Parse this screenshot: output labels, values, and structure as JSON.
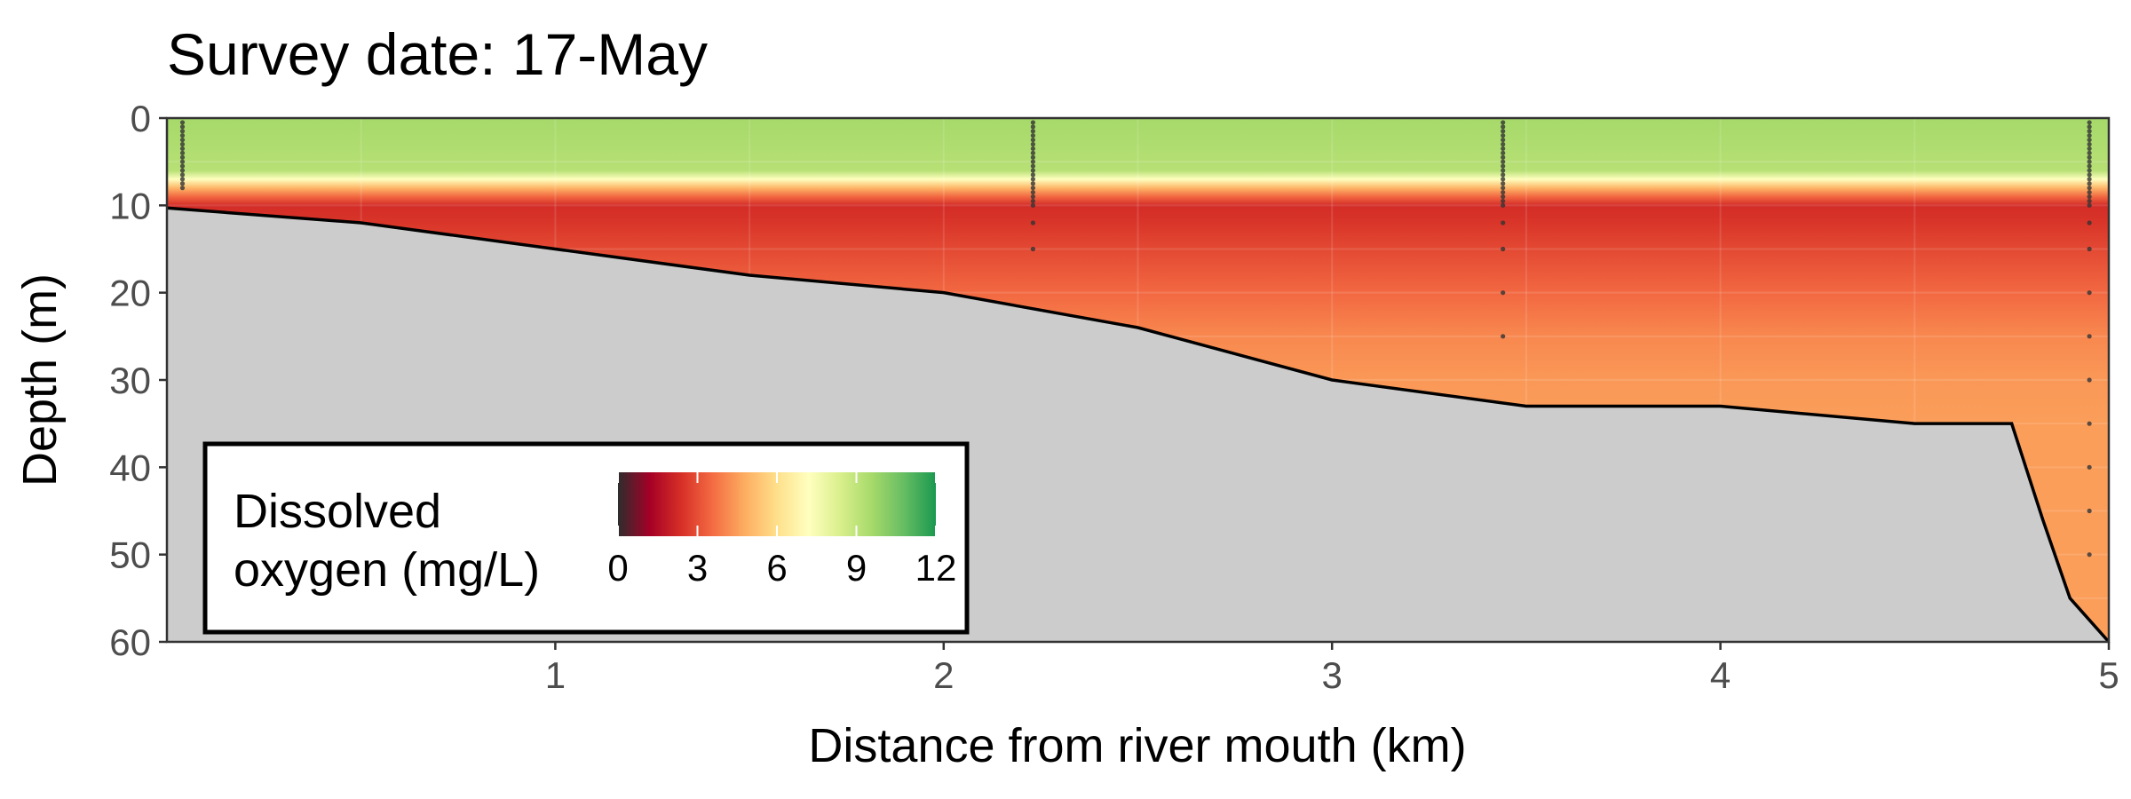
{
  "chart_data": {
    "type": "heatmap",
    "title": "Survey date: 17-May",
    "xlabel": "Distance from river mouth (km)",
    "ylabel": "Depth (m)",
    "xlim": [
      0,
      5
    ],
    "ylim": [
      0,
      60
    ],
    "y_reversed": true,
    "x_ticks": [
      1,
      2,
      3,
      4,
      5
    ],
    "x_tick_labels": [
      "1",
      "2",
      "3",
      "4",
      "5"
    ],
    "y_ticks": [
      0,
      10,
      20,
      30,
      40,
      50,
      60
    ],
    "y_tick_labels": [
      "0",
      "10",
      "20",
      "30",
      "40",
      "50",
      "60"
    ],
    "grid": true,
    "legend": {
      "title_line1": "Dissolved",
      "title_line2": "oxygen (mg/L)",
      "placement": "bottom-left",
      "range": [
        0,
        12
      ],
      "ticks": [
        0,
        3,
        6,
        9,
        12
      ],
      "tick_labels": [
        "0",
        "3",
        "6",
        "9",
        "12"
      ],
      "colormap": [
        "#2d2d2d",
        "#a50026",
        "#d73027",
        "#f46d43",
        "#fdae61",
        "#fee08b",
        "#ffffbf",
        "#d9ef8b",
        "#a6d96a",
        "#66bd63",
        "#1a9850"
      ]
    },
    "oxygen_profile": {
      "depth": [
        0,
        6,
        7,
        8,
        9,
        10,
        12,
        15,
        20,
        25,
        30,
        35,
        60
      ],
      "do_mgL": [
        9.6,
        9.2,
        7.2,
        5.0,
        3.5,
        2.3,
        2.5,
        2.9,
        3.5,
        4.1,
        4.4,
        4.5,
        4.5
      ]
    },
    "bathymetry": {
      "distance_km": [
        0,
        0.5,
        1.0,
        1.5,
        2.0,
        2.5,
        3.0,
        3.5,
        4.0,
        4.5,
        4.75,
        4.83,
        4.9,
        5.0
      ],
      "depth_m": [
        10.3,
        12,
        15,
        18,
        20,
        24,
        30,
        33,
        33,
        35,
        35,
        46,
        55,
        60
      ]
    },
    "sampling_stations": [
      {
        "distance_km": 0.04,
        "depths_m": [
          0.5,
          1,
          1.5,
          2,
          2.5,
          3,
          3.5,
          4,
          4.5,
          5,
          5.5,
          6,
          6.5,
          7,
          7.5,
          8
        ]
      },
      {
        "distance_km": 2.23,
        "depths_m": [
          0.5,
          1,
          1.5,
          2,
          2.5,
          3,
          3.5,
          4,
          4.5,
          5,
          5.5,
          6,
          6.5,
          7,
          7.5,
          8,
          8.5,
          9,
          9.5,
          10,
          12,
          15
        ]
      },
      {
        "distance_km": 3.44,
        "depths_m": [
          0.5,
          1,
          1.5,
          2,
          2.5,
          3,
          3.5,
          4,
          4.5,
          5,
          5.5,
          6,
          6.5,
          7,
          7.5,
          8,
          8.5,
          9,
          9.5,
          10,
          12,
          15,
          20,
          25
        ]
      },
      {
        "distance_km": 4.95,
        "depths_m": [
          0.5,
          1,
          1.5,
          2,
          2.5,
          3,
          3.5,
          4,
          4.5,
          5,
          5.5,
          6,
          6.5,
          7,
          7.5,
          8,
          8.5,
          9,
          9.5,
          10,
          12,
          15,
          20,
          25,
          30,
          35,
          40,
          45,
          50
        ]
      }
    ],
    "colors": {
      "seabed": "#cccccc",
      "seabed_line": "#000000",
      "station_points": "#333333",
      "grid": "#ebebeb",
      "panel_border": "#333333"
    }
  }
}
